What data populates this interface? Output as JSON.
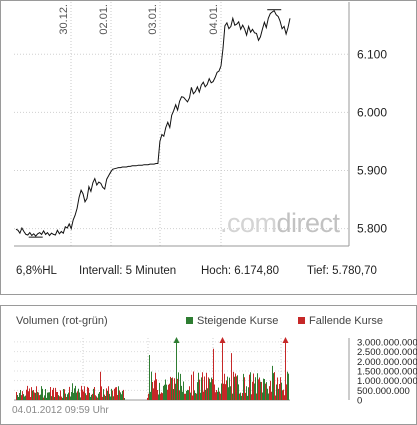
{
  "chart_data": [
    {
      "type": "line",
      "x_labels": [
        "30.12.",
        "02.01.",
        "03.01.",
        "04.01."
      ],
      "y_ticks": [
        5800,
        5900,
        6000,
        6100
      ],
      "y_tick_labels": [
        "5.800",
        "5.900",
        "6.000",
        "6.100"
      ],
      "ylim": [
        5770,
        6190
      ],
      "grid": true,
      "series": [
        {
          "values": [
            5799,
            5797,
            5792,
            5801,
            5795,
            5790,
            5789,
            5793,
            5788,
            5791,
            5787,
            5791,
            5793,
            5790,
            5796,
            5790,
            5793,
            5788,
            5792,
            5790,
            5789,
            5797,
            5791,
            5795,
            5792,
            5803,
            5801,
            5808,
            5800,
            5815,
            5823,
            5835,
            5854,
            5866,
            5860,
            5846,
            5852,
            5872,
            5864,
            5879,
            5886,
            5875,
            5880,
            5878,
            5871,
            5868,
            5885,
            5891,
            5897,
            5902,
            5903,
            5904,
            5905,
            5905,
            5906,
            5906,
            5906,
            5907,
            5907,
            5908,
            5908,
            5908,
            5909,
            5909,
            5909,
            5910,
            5910,
            5910,
            5911,
            5911,
            5911,
            5912,
            5912,
            5950,
            5962,
            5959,
            5974,
            5983,
            5974,
            5995,
            6003,
            6013,
            6004,
            6019,
            6027,
            6026,
            6022,
            6018,
            6025,
            6043,
            6032,
            6036,
            6044,
            6035,
            6047,
            6052,
            6044,
            6048,
            6058,
            6051,
            6053,
            6060,
            6069,
            6071,
            6080,
            6110,
            6149,
            6154,
            6144,
            6148,
            6162,
            6150,
            6152,
            6156,
            6143,
            6150,
            6143,
            6133,
            6148,
            6138,
            6143,
            6137,
            6136,
            6124,
            6130,
            6143,
            6155,
            6146,
            6162,
            6170,
            6173,
            6175,
            6168,
            6165,
            6157,
            6144,
            6148,
            6135,
            6146,
            6162
          ]
        }
      ]
    },
    {
      "type": "bar",
      "title": "Volumen (rot-grün)",
      "legend": [
        "Steigende Kurse",
        "Fallende Kurse"
      ],
      "colors": {
        "rising": "#2e7d32",
        "falling": "#c62828"
      },
      "y_ticks": [
        0,
        500000000,
        1000000000,
        1500000000,
        2000000000,
        2500000000,
        3000000000
      ],
      "y_tick_labels": [
        "0",
        "500.000.000",
        "1.000.000.000",
        "1.500.000.000",
        "2.000.000.000",
        "2.500.000.000",
        "3.000.000.000"
      ],
      "ylim": [
        0,
        3200000000
      ],
      "clipped_above": [
        3200000000,
        3200000000,
        3200000000
      ]
    }
  ],
  "info": {
    "volatility": "6,8%HL",
    "interval_label": "Intervall:",
    "interval_value": "5 Minuten",
    "high_label": "Hoch:",
    "high_value": "6.174,80",
    "low_label": "Tief:",
    "low_value": "5.780,70"
  },
  "watermark": {
    "part1": ".com",
    "part2": "direct"
  },
  "timestamp": "04.01.2012 09:59 Uhr"
}
